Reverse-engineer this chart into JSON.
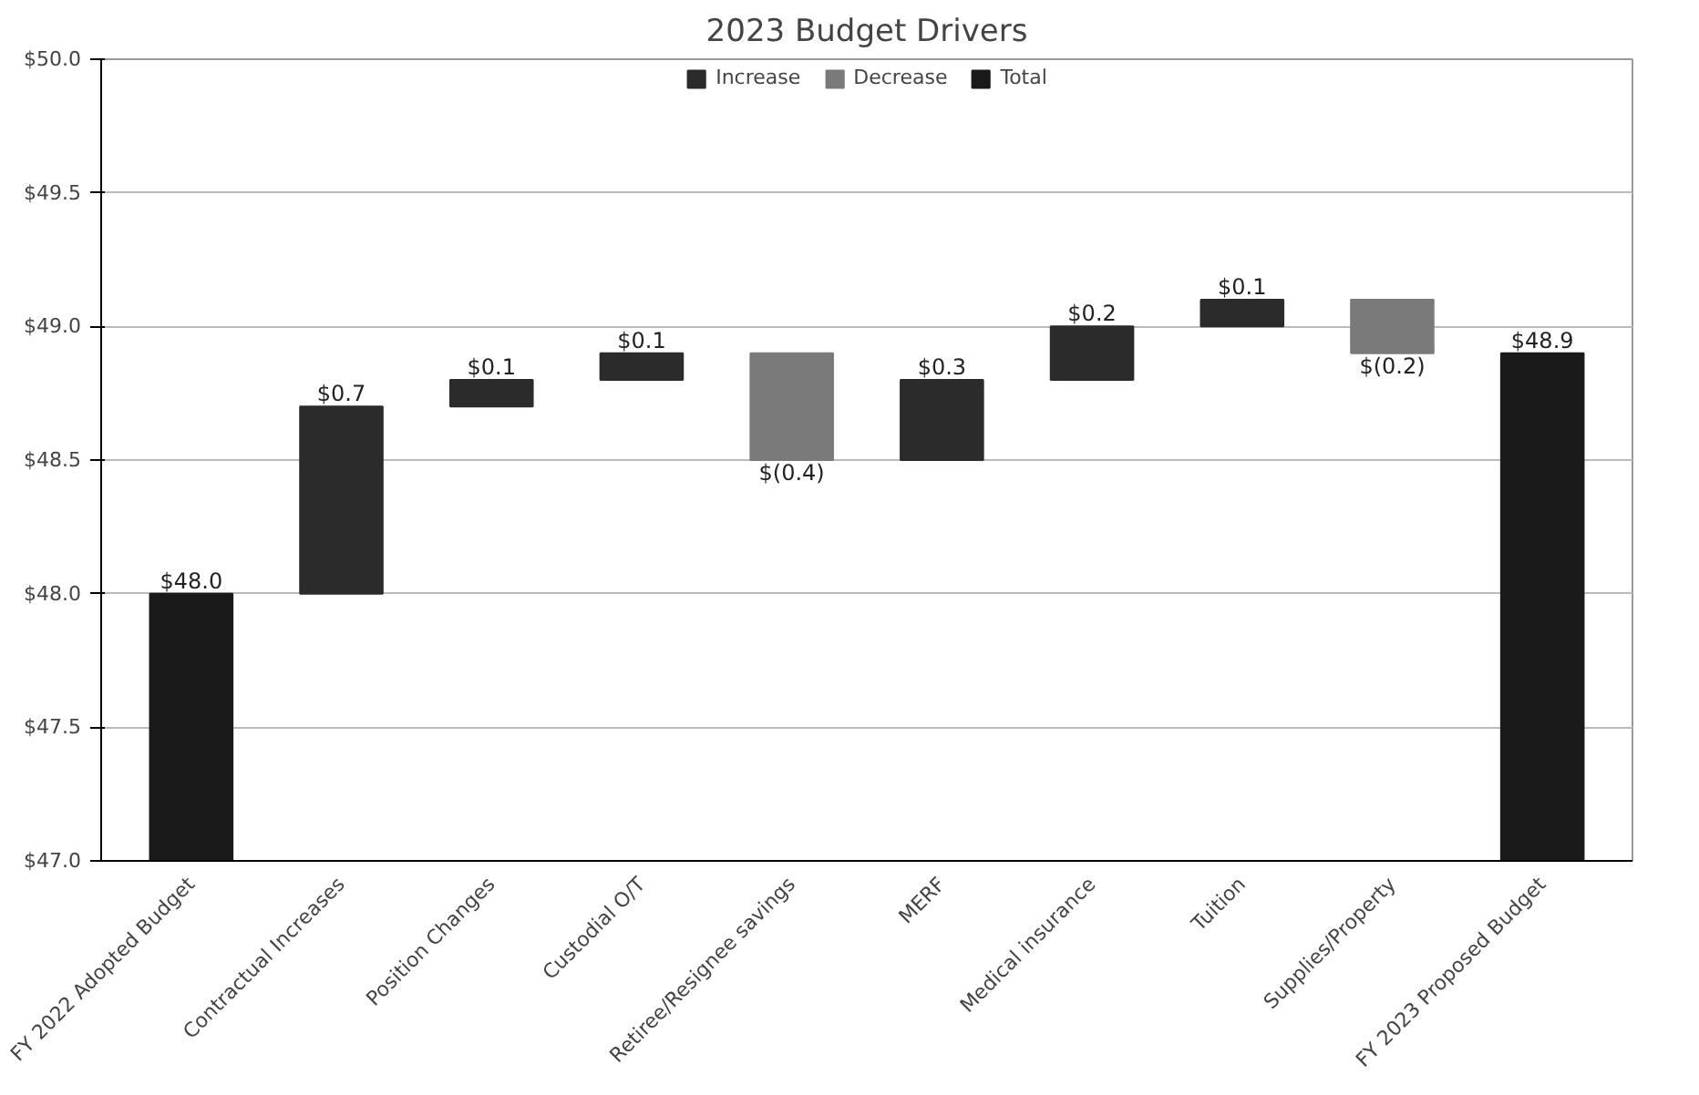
{
  "chart_data": {
    "type": "bar",
    "title": "2023 Budget Drivers",
    "categories": [
      "FY 2022 Adopted Budget",
      "Contractual Increases",
      "Position Changes",
      "Custodial O/T",
      "Retiree/Resignee savings",
      "MERF",
      "Medical insurance",
      "Tuition",
      "Supplies/Property",
      "FY 2023 Proposed Budget"
    ],
    "series": [
      {
        "name": "Increase",
        "color": "#2b2b2b",
        "base": [
          null,
          48.0,
          48.7,
          48.8,
          null,
          48.5,
          48.8,
          49.0,
          null,
          null
        ],
        "values": [
          null,
          0.7,
          0.1,
          0.1,
          null,
          0.3,
          0.2,
          0.1,
          null,
          null
        ],
        "value_labels": [
          null,
          "$0.7",
          "$0.1",
          "$0.1",
          null,
          "$0.3",
          "$0.2",
          "$0.1",
          null,
          null
        ]
      },
      {
        "name": "Decrease",
        "color": "#7a7a7a",
        "base": [
          null,
          null,
          null,
          null,
          48.9,
          null,
          null,
          null,
          49.1,
          null
        ],
        "values": [
          null,
          null,
          null,
          null,
          -0.4,
          null,
          null,
          null,
          -0.2,
          null
        ],
        "value_labels": [
          null,
          null,
          null,
          null,
          "$(0.4)",
          null,
          null,
          null,
          "$(0.2)",
          null
        ]
      },
      {
        "name": "Total",
        "color": "#1a1a1a",
        "values": [
          48.0,
          null,
          null,
          null,
          null,
          null,
          null,
          null,
          null,
          48.9
        ],
        "value_labels": [
          "$48.0",
          null,
          null,
          null,
          null,
          null,
          null,
          null,
          null,
          "$48.9"
        ]
      }
    ],
    "ylim": [
      47.0,
      50.0
    ],
    "yticks": [
      {
        "value": 47.0,
        "label": "$47.0"
      },
      {
        "value": 47.5,
        "label": "$47.5"
      },
      {
        "value": 48.0,
        "label": "$48.0"
      },
      {
        "value": 48.5,
        "label": "$48.5"
      },
      {
        "value": 49.0,
        "label": "$49.0"
      },
      {
        "value": 49.5,
        "label": "$49.5"
      },
      {
        "value": 50.0,
        "label": "$50.0"
      }
    ],
    "grid": "y",
    "legend": "top"
  }
}
